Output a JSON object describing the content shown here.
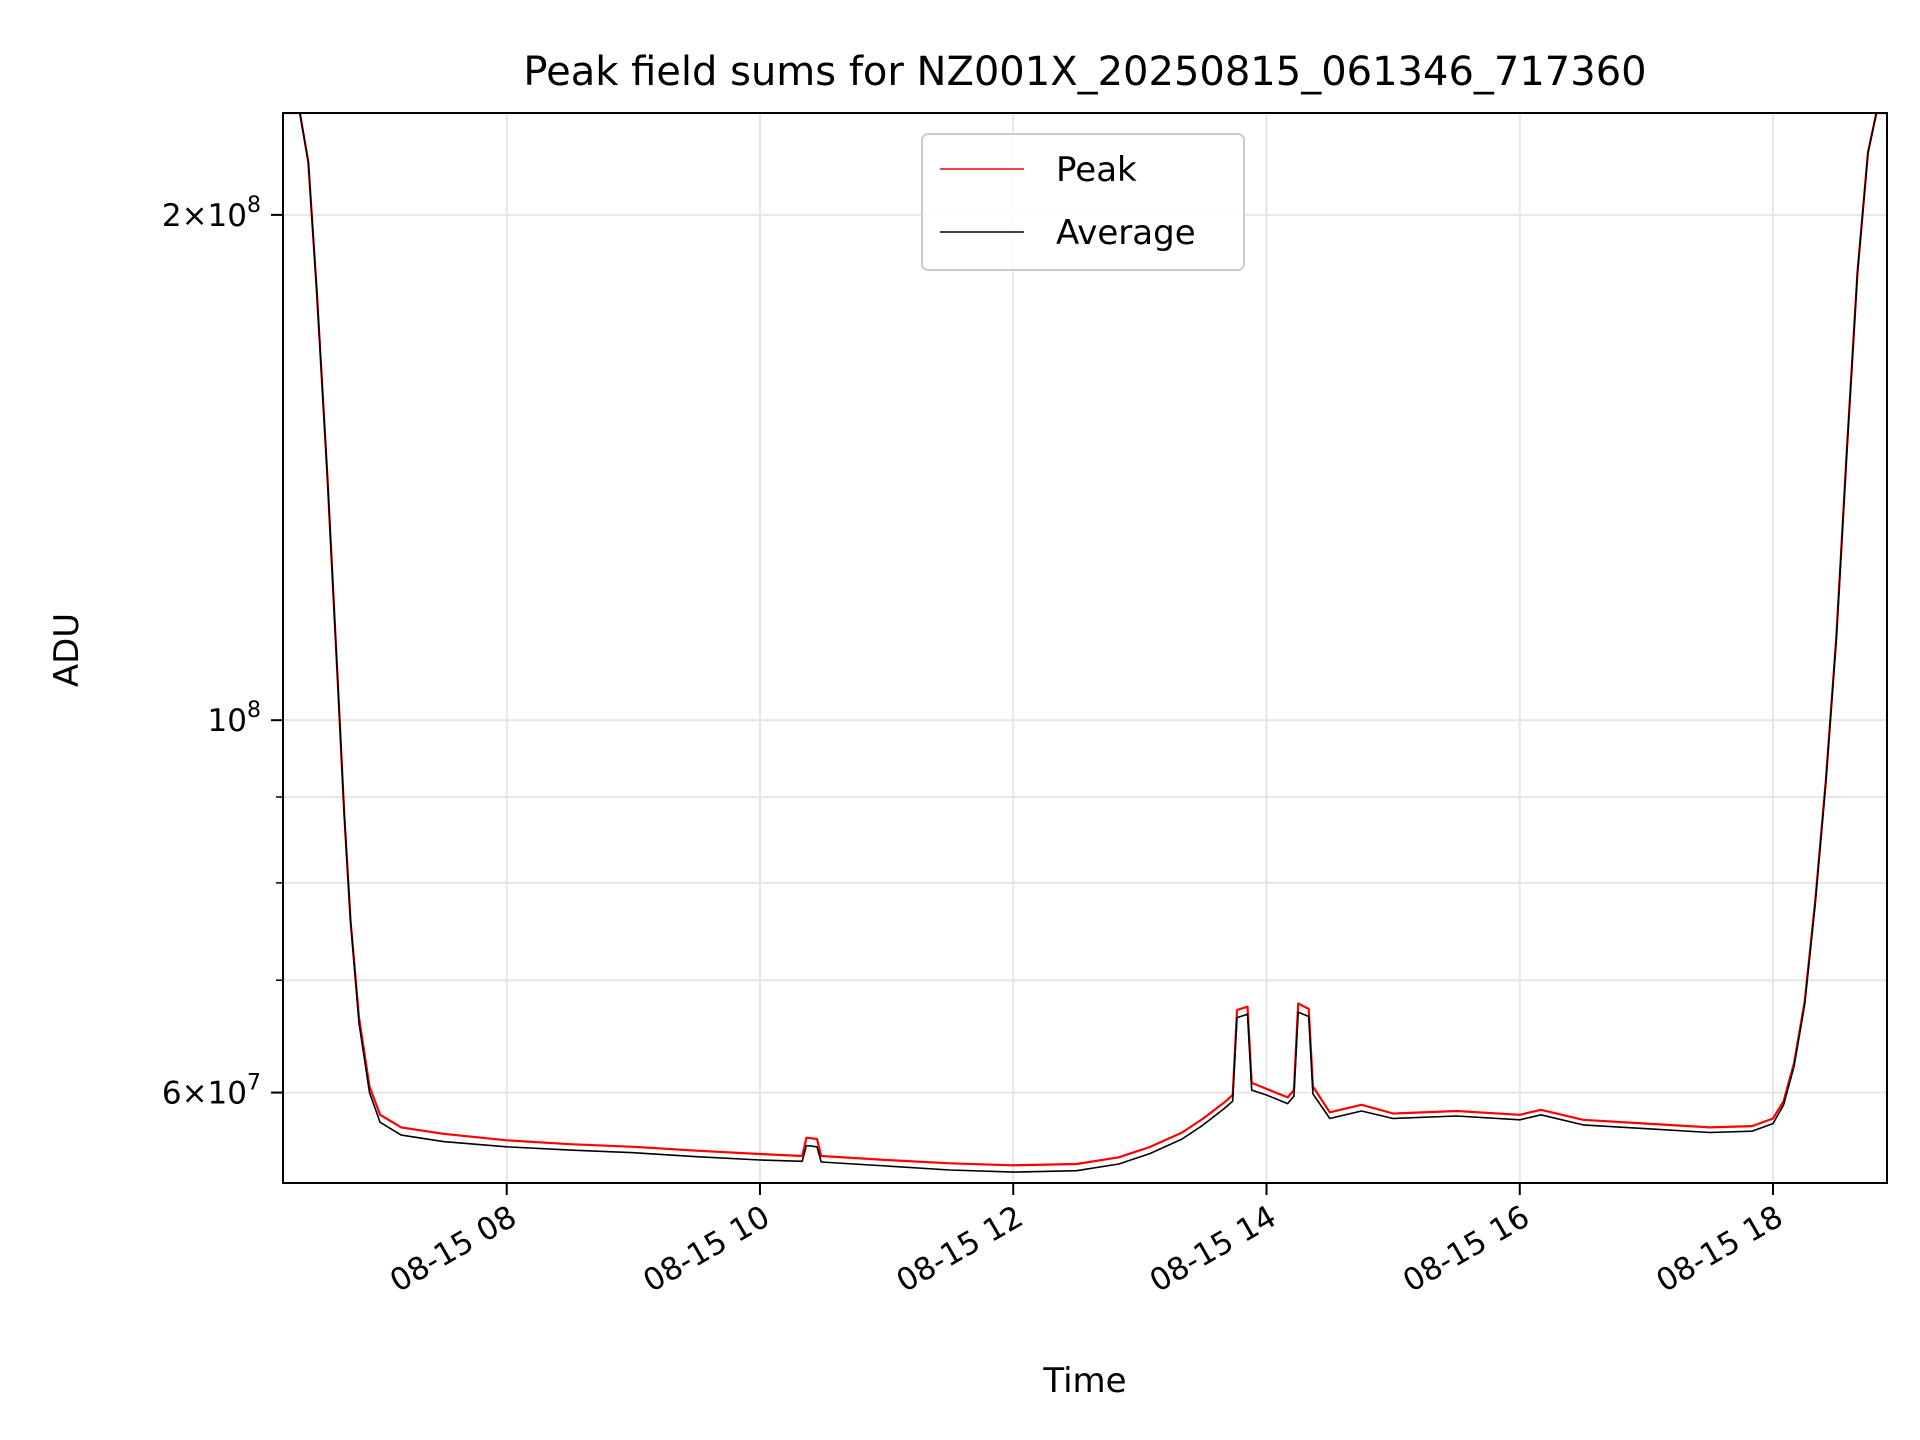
{
  "chart_data": {
    "type": "line",
    "title": "Peak field sums for NZ001X_20250815_061346_717360",
    "xlabel": "Time",
    "ylabel": "ADU",
    "y_scale": "log",
    "xlim": [
      "2025-08-15 06:14",
      "2025-08-15 18:54"
    ],
    "ylim": [
      53000000,
      230000000
    ],
    "grid": true,
    "legend_position": "top-center",
    "x_ticks": [
      {
        "label": "08-15 08",
        "value": "2025-08-15 08:00"
      },
      {
        "label": "08-15 10",
        "value": "2025-08-15 10:00"
      },
      {
        "label": "08-15 12",
        "value": "2025-08-15 12:00"
      },
      {
        "label": "08-15 14",
        "value": "2025-08-15 14:00"
      },
      {
        "label": "08-15 16",
        "value": "2025-08-15 16:00"
      },
      {
        "label": "08-15 18",
        "value": "2025-08-15 18:00"
      }
    ],
    "y_ticks": [
      {
        "base": "6",
        "exp": "7",
        "value": 60000000
      },
      {
        "base": "",
        "exp": "8",
        "value": 100000000
      },
      {
        "base": "2",
        "exp": "8",
        "value": 200000000
      }
    ],
    "y_minor_ticks": [
      70000000,
      80000000,
      90000000
    ],
    "series": [
      {
        "name": "Peak",
        "color": "#ff0000",
        "points": [
          [
            "2025-08-15 06:14",
            230000000
          ],
          [
            "2025-08-15 06:22",
            230000000
          ],
          [
            "2025-08-15 06:26",
            215000000
          ],
          [
            "2025-08-15 06:30",
            180000000
          ],
          [
            "2025-08-15 06:35",
            140000000
          ],
          [
            "2025-08-15 06:40",
            105000000
          ],
          [
            "2025-08-15 06:43",
            88000000
          ],
          [
            "2025-08-15 06:46",
            76000000
          ],
          [
            "2025-08-15 06:50",
            66500000
          ],
          [
            "2025-08-15 06:55",
            60500000
          ],
          [
            "2025-08-15 07:00",
            58200000
          ],
          [
            "2025-08-15 07:10",
            57200000
          ],
          [
            "2025-08-15 07:30",
            56700000
          ],
          [
            "2025-08-15 08:00",
            56200000
          ],
          [
            "2025-08-15 08:30",
            55900000
          ],
          [
            "2025-08-15 09:00",
            55700000
          ],
          [
            "2025-08-15 09:30",
            55400000
          ],
          [
            "2025-08-15 10:00",
            55150000
          ],
          [
            "2025-08-15 10:20",
            55000000
          ],
          [
            "2025-08-15 10:22",
            56400000
          ],
          [
            "2025-08-15 10:27",
            56300000
          ],
          [
            "2025-08-15 10:29",
            55000000
          ],
          [
            "2025-08-15 11:00",
            54700000
          ],
          [
            "2025-08-15 11:30",
            54450000
          ],
          [
            "2025-08-15 12:00",
            54300000
          ],
          [
            "2025-08-15 12:30",
            54400000
          ],
          [
            "2025-08-15 12:50",
            54900000
          ],
          [
            "2025-08-15 13:05",
            55700000
          ],
          [
            "2025-08-15 13:20",
            56800000
          ],
          [
            "2025-08-15 13:30",
            57900000
          ],
          [
            "2025-08-15 13:40",
            59200000
          ],
          [
            "2025-08-15 13:44",
            59800000
          ],
          [
            "2025-08-15 13:46",
            67200000
          ],
          [
            "2025-08-15 13:51",
            67500000
          ],
          [
            "2025-08-15 13:53",
            60800000
          ],
          [
            "2025-08-15 14:00",
            60300000
          ],
          [
            "2025-08-15 14:10",
            59600000
          ],
          [
            "2025-08-15 14:13",
            60200000
          ],
          [
            "2025-08-15 14:15",
            67800000
          ],
          [
            "2025-08-15 14:20",
            67300000
          ],
          [
            "2025-08-15 14:22",
            60500000
          ],
          [
            "2025-08-15 14:30",
            58400000
          ],
          [
            "2025-08-15 14:45",
            59000000
          ],
          [
            "2025-08-15 15:00",
            58300000
          ],
          [
            "2025-08-15 15:30",
            58500000
          ],
          [
            "2025-08-15 16:00",
            58200000
          ],
          [
            "2025-08-15 16:10",
            58600000
          ],
          [
            "2025-08-15 16:30",
            57800000
          ],
          [
            "2025-08-15 17:00",
            57500000
          ],
          [
            "2025-08-15 17:30",
            57200000
          ],
          [
            "2025-08-15 17:50",
            57300000
          ],
          [
            "2025-08-15 18:00",
            57900000
          ],
          [
            "2025-08-15 18:05",
            59300000
          ],
          [
            "2025-08-15 18:10",
            62500000
          ],
          [
            "2025-08-15 18:15",
            68000000
          ],
          [
            "2025-08-15 18:20",
            78000000
          ],
          [
            "2025-08-15 18:25",
            92000000
          ],
          [
            "2025-08-15 18:30",
            112000000
          ],
          [
            "2025-08-15 18:35",
            145000000
          ],
          [
            "2025-08-15 18:40",
            185000000
          ],
          [
            "2025-08-15 18:45",
            218000000
          ],
          [
            "2025-08-15 18:49",
            230000000
          ],
          [
            "2025-08-15 18:54",
            230000000
          ]
        ]
      },
      {
        "name": "Average",
        "color": "#000000",
        "points": [
          [
            "2025-08-15 06:14",
            230000000
          ],
          [
            "2025-08-15 06:22",
            230000000
          ],
          [
            "2025-08-15 06:26",
            215000000
          ],
          [
            "2025-08-15 06:30",
            180000000
          ],
          [
            "2025-08-15 06:35",
            140000000
          ],
          [
            "2025-08-15 06:40",
            105000000
          ],
          [
            "2025-08-15 06:43",
            88000000
          ],
          [
            "2025-08-15 06:46",
            76000000
          ],
          [
            "2025-08-15 06:50",
            66000000
          ],
          [
            "2025-08-15 06:55",
            60000000
          ],
          [
            "2025-08-15 07:00",
            57600000
          ],
          [
            "2025-08-15 07:10",
            56600000
          ],
          [
            "2025-08-15 07:30",
            56100000
          ],
          [
            "2025-08-15 08:00",
            55700000
          ],
          [
            "2025-08-15 08:30",
            55450000
          ],
          [
            "2025-08-15 09:00",
            55250000
          ],
          [
            "2025-08-15 09:30",
            54950000
          ],
          [
            "2025-08-15 10:00",
            54700000
          ],
          [
            "2025-08-15 10:20",
            54600000
          ],
          [
            "2025-08-15 10:22",
            55800000
          ],
          [
            "2025-08-15 10:27",
            55700000
          ],
          [
            "2025-08-15 10:29",
            54550000
          ],
          [
            "2025-08-15 11:00",
            54250000
          ],
          [
            "2025-08-15 11:30",
            53950000
          ],
          [
            "2025-08-15 12:00",
            53800000
          ],
          [
            "2025-08-15 12:30",
            53900000
          ],
          [
            "2025-08-15 12:50",
            54400000
          ],
          [
            "2025-08-15 13:05",
            55200000
          ],
          [
            "2025-08-15 13:20",
            56300000
          ],
          [
            "2025-08-15 13:30",
            57400000
          ],
          [
            "2025-08-15 13:40",
            58700000
          ],
          [
            "2025-08-15 13:44",
            59300000
          ],
          [
            "2025-08-15 13:46",
            66500000
          ],
          [
            "2025-08-15 13:51",
            66800000
          ],
          [
            "2025-08-15 13:53",
            60200000
          ],
          [
            "2025-08-15 14:00",
            59800000
          ],
          [
            "2025-08-15 14:10",
            59100000
          ],
          [
            "2025-08-15 14:13",
            59700000
          ],
          [
            "2025-08-15 14:15",
            67000000
          ],
          [
            "2025-08-15 14:20",
            66600000
          ],
          [
            "2025-08-15 14:22",
            59900000
          ],
          [
            "2025-08-15 14:30",
            57900000
          ],
          [
            "2025-08-15 14:45",
            58500000
          ],
          [
            "2025-08-15 15:00",
            57900000
          ],
          [
            "2025-08-15 15:30",
            58100000
          ],
          [
            "2025-08-15 16:00",
            57800000
          ],
          [
            "2025-08-15 16:10",
            58200000
          ],
          [
            "2025-08-15 16:30",
            57400000
          ],
          [
            "2025-08-15 17:00",
            57100000
          ],
          [
            "2025-08-15 17:30",
            56800000
          ],
          [
            "2025-08-15 17:50",
            56900000
          ],
          [
            "2025-08-15 18:00",
            57500000
          ],
          [
            "2025-08-15 18:05",
            59000000
          ],
          [
            "2025-08-15 18:10",
            62200000
          ],
          [
            "2025-08-15 18:15",
            67700000
          ],
          [
            "2025-08-15 18:20",
            77700000
          ],
          [
            "2025-08-15 18:25",
            91700000
          ],
          [
            "2025-08-15 18:30",
            111700000
          ],
          [
            "2025-08-15 18:35",
            144700000
          ],
          [
            "2025-08-15 18:40",
            184700000
          ],
          [
            "2025-08-15 18:45",
            217700000
          ],
          [
            "2025-08-15 18:49",
            230000000
          ],
          [
            "2025-08-15 18:54",
            230000000
          ]
        ]
      }
    ]
  }
}
